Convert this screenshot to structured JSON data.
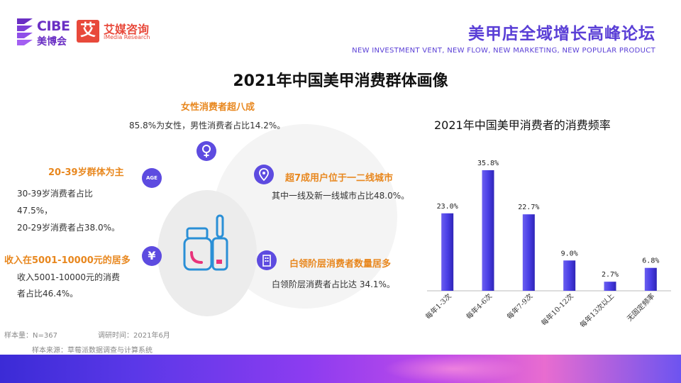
{
  "header": {
    "cibe_name": "CIBE",
    "cibe_sub": "美博会",
    "aimedia_mark": "艾",
    "aimedia_name": "艾媒咨询",
    "aimedia_sub": "iMedia Research",
    "forum_title": "美甲店全域增长高峰论坛",
    "forum_sub": "NEW INVESTMENT VENT, NEW FLOW, NEW MARKETING, NEW POPULAR PRODUCT"
  },
  "main_title": "2021年中国美甲消费群体画像",
  "profile": {
    "female": {
      "title": "女性消费者超八成",
      "text": "85.8%为女性，男性消费者占比14.2%。",
      "icon": "female-symbol-icon"
    },
    "age": {
      "title": "20-39岁群体为主",
      "line1": "30-39岁消费者占比",
      "line2": "47.5%，",
      "line3": "20-29岁消费者占38.0%。",
      "icon": "age-icon",
      "icon_text": "AGE"
    },
    "city": {
      "title": "超7成用户位于一二线城市",
      "text": "其中一线及新一线城市占比48.0%。",
      "icon": "location-pin-icon"
    },
    "income": {
      "title": "收入在5001-10000元的居多",
      "line1": "收入5001-10000元的消费",
      "line2": "者占比46.4%。",
      "icon": "yen-icon",
      "icon_text": "¥"
    },
    "whitecollar": {
      "title": "白领阶层消费者数量居多",
      "text": "白领阶层消费者占比达  34.1%。",
      "icon": "office-building-icon"
    }
  },
  "footnotes": {
    "sample_size": "样本量：N=367",
    "survey_time": "调研时间：2021年6月",
    "source": "样本来源：草莓派数据调查与计算系统"
  },
  "chart_title": "2021年中国美甲消费者的消费频率",
  "chart_data": {
    "type": "bar",
    "categories": [
      "每年1-3次",
      "每年4-6次",
      "每年7-9次",
      "每年10-12次",
      "每年13次以上",
      "无固定频率"
    ],
    "values": [
      23.0,
      35.8,
      22.7,
      9.0,
      2.7,
      6.8
    ],
    "value_labels": [
      "23.0%",
      "35.8%",
      "22.7%",
      "9.0%",
      "2.7%",
      "6.8%"
    ],
    "title": "2021年中国美甲消费者的消费频率",
    "xlabel": "",
    "ylabel": "",
    "ylim": [
      0,
      40
    ],
    "grid": false,
    "bar_color": "#4a3fe6"
  },
  "colors": {
    "accent_purple": "#5a3fd6",
    "highlight_orange": "#e8871e",
    "aimedia_red": "#e8493b"
  }
}
